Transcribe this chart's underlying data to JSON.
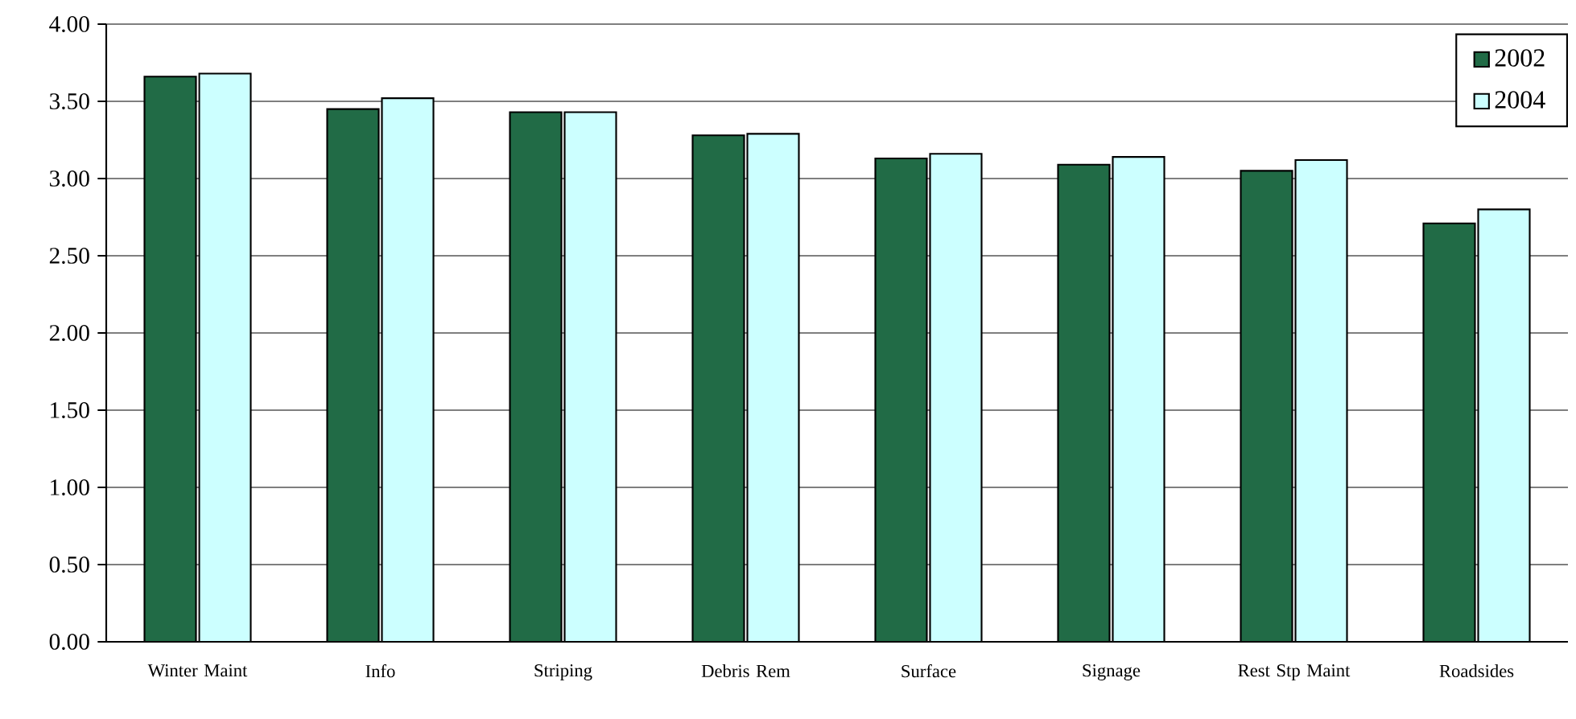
{
  "chart_data": {
    "type": "bar",
    "categories": [
      "Winter Maint",
      "Info",
      "Striping",
      "Debris Rem",
      "Surface",
      "Signage",
      "Rest Stp Maint",
      "Roadsides"
    ],
    "series": [
      {
        "name": "2002",
        "color": "#216b46",
        "values": [
          3.66,
          3.45,
          3.43,
          3.28,
          3.13,
          3.09,
          3.05,
          2.71
        ]
      },
      {
        "name": "2004",
        "color": "#ccffff",
        "values": [
          3.68,
          3.52,
          3.43,
          3.29,
          3.16,
          3.14,
          3.12,
          2.8
        ]
      }
    ],
    "ylim": [
      0,
      4
    ],
    "yticks": [
      {
        "value": 0,
        "label": "0.00"
      },
      {
        "value": 0.5,
        "label": "0.50"
      },
      {
        "value": 1,
        "label": "1.00"
      },
      {
        "value": 1.5,
        "label": "1.50"
      },
      {
        "value": 2,
        "label": "2.00"
      },
      {
        "value": 2.5,
        "label": "2.50"
      },
      {
        "value": 3,
        "label": "3.00"
      },
      {
        "value": 3.5,
        "label": "3.50"
      },
      {
        "value": 4,
        "label": "4.00"
      }
    ],
    "grid": "y",
    "legend": "top right"
  }
}
